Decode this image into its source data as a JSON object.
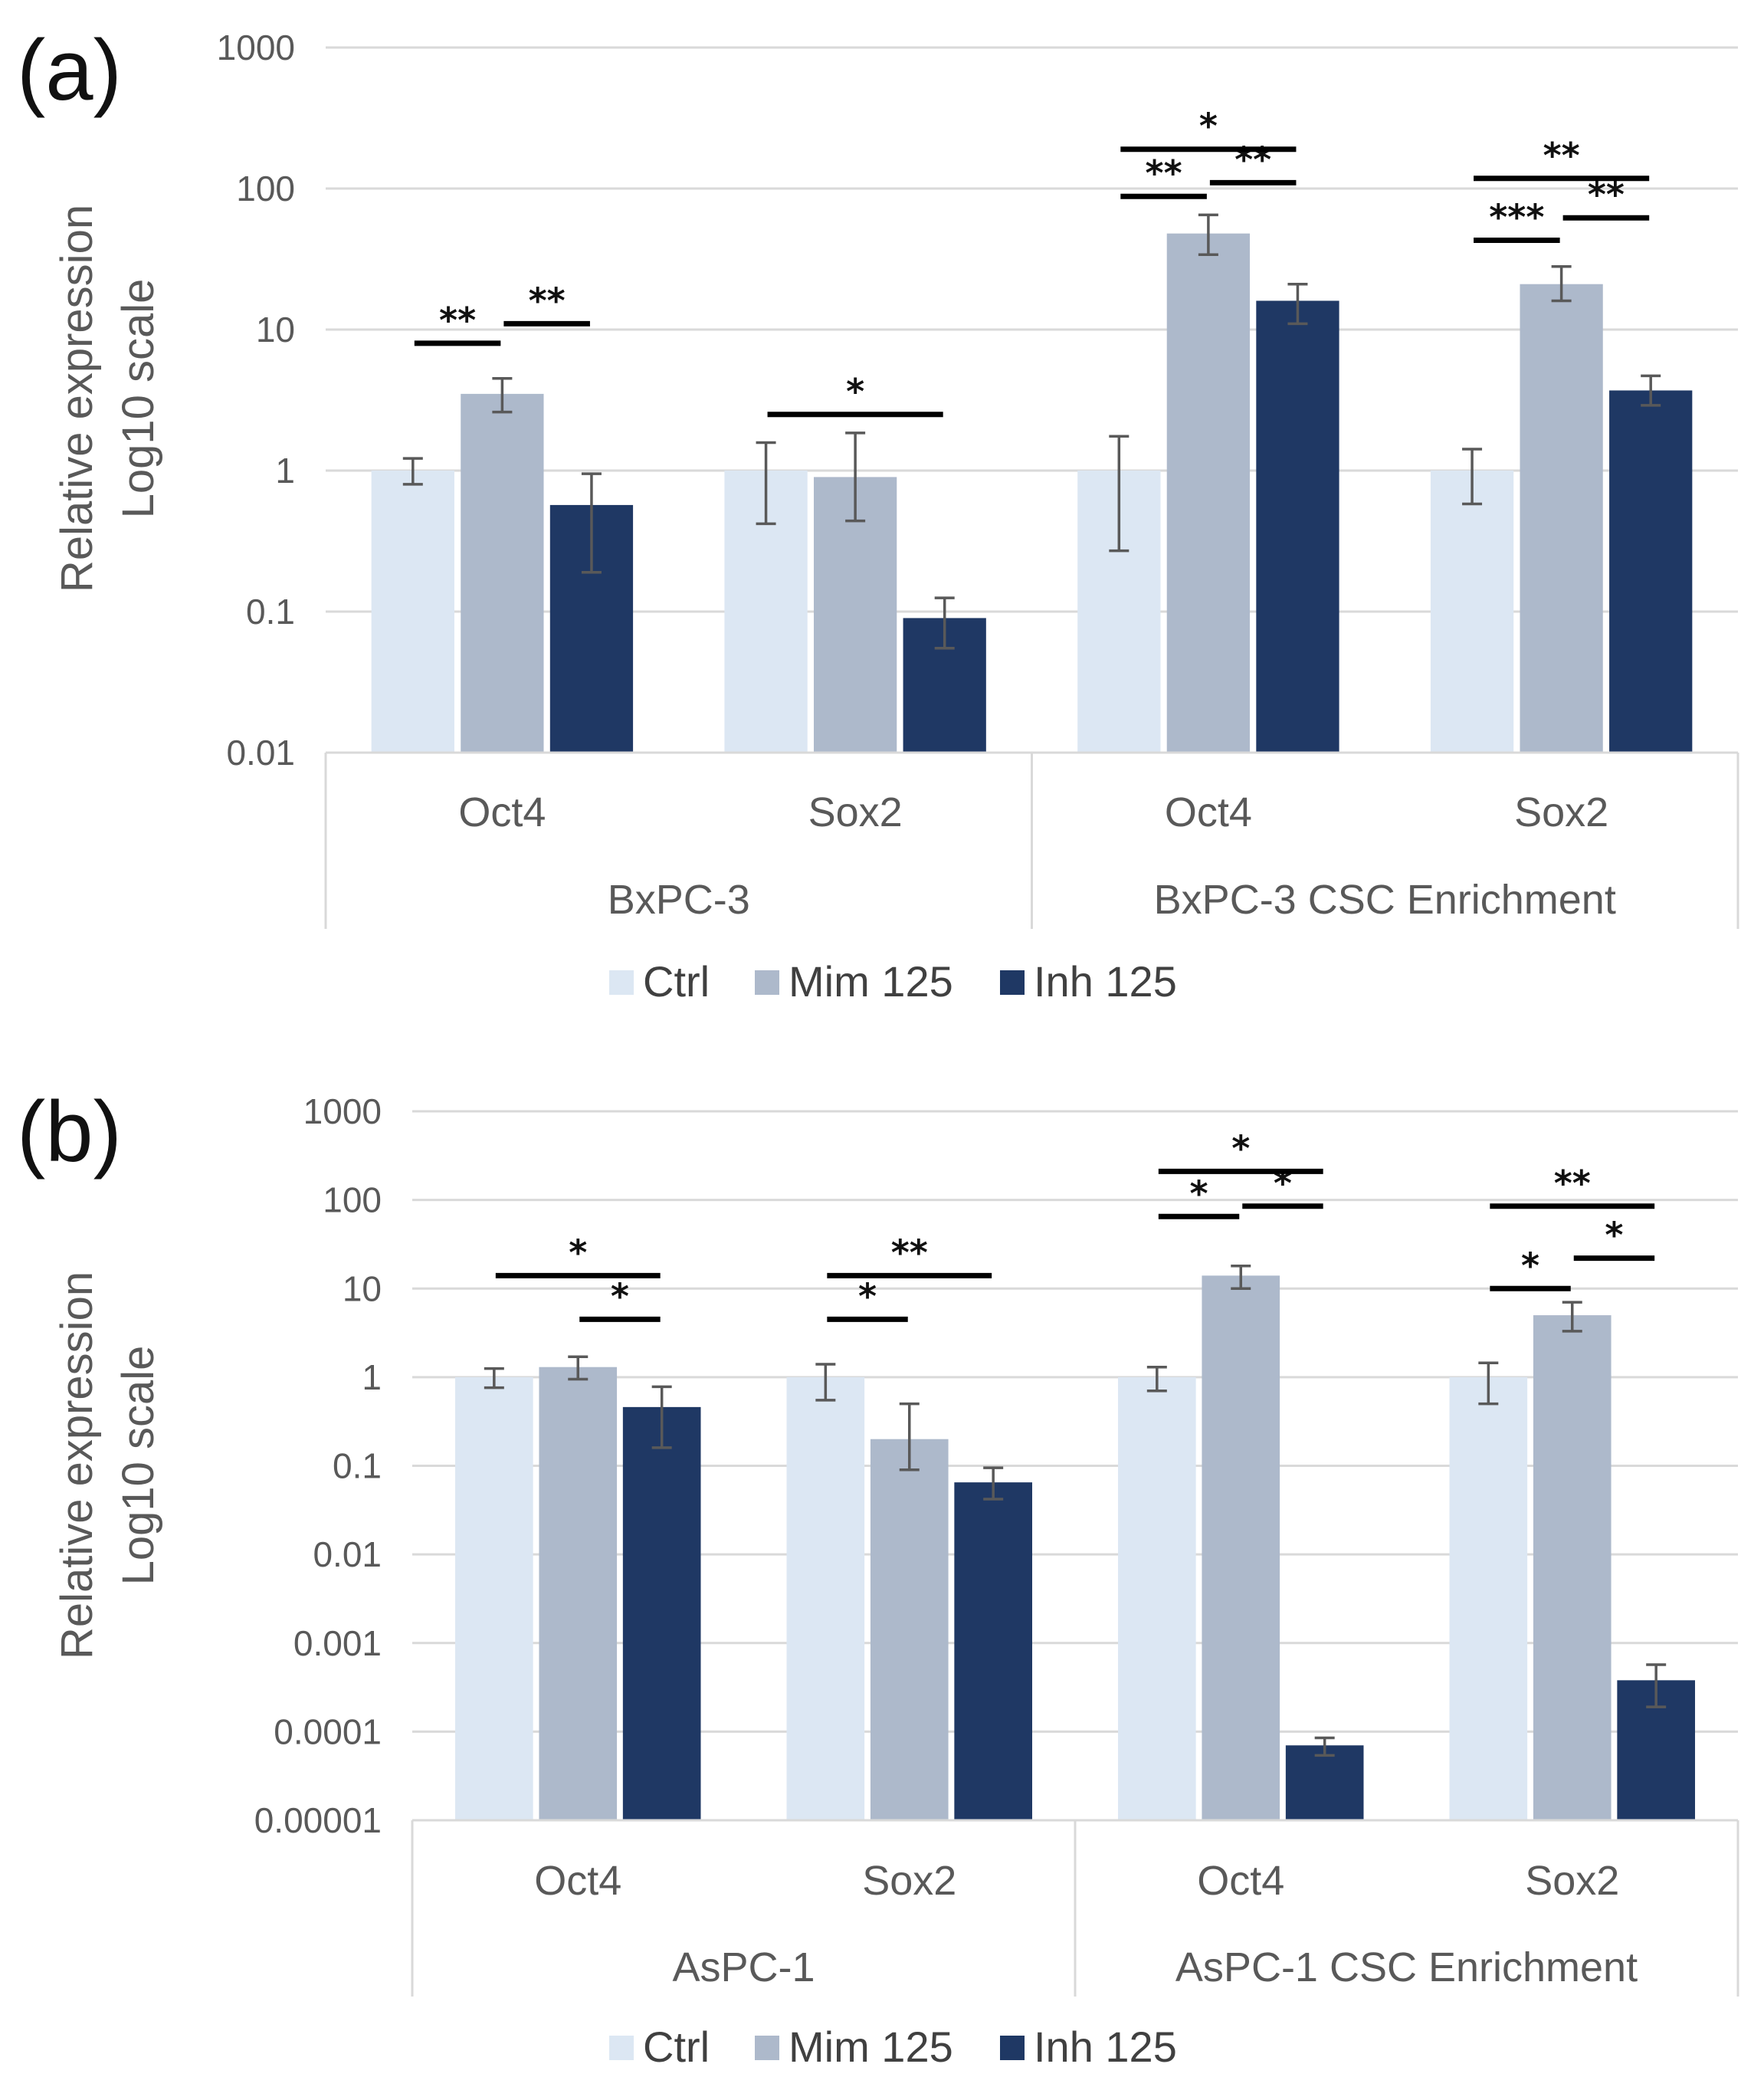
{
  "colors": {
    "Ctrl": "#dce7f3",
    "Mim 125": "#adb9cb",
    "Inh 125": "#1f3864"
  },
  "chart_data": [
    {
      "panel_label": "(a)",
      "type": "bar",
      "yscale": "log10",
      "ylim": [
        0.01,
        1000
      ],
      "yticks": [
        "0.01",
        "0.1",
        "1",
        "10",
        "100",
        "1000"
      ],
      "ylabel": [
        "Relative expression",
        "Log10 scale"
      ],
      "categories": [
        "Oct4",
        "Sox2",
        "Oct4",
        "Sox2"
      ],
      "groups": [
        {
          "label": "BxPC-3",
          "categories": [
            0,
            1
          ]
        },
        {
          "label": "BxPC-3 CSC Enrichment",
          "categories": [
            2,
            3
          ]
        }
      ],
      "series": [
        {
          "name": "Ctrl",
          "values": [
            1,
            1,
            1,
            1
          ],
          "err_low": [
            0.8,
            0.42,
            0.27,
            0.58
          ],
          "err_high": [
            1.22,
            1.58,
            1.75,
            1.42
          ]
        },
        {
          "name": "Mim 125",
          "values": [
            3.5,
            0.9,
            48,
            21
          ],
          "err_low": [
            2.6,
            0.44,
            34,
            16
          ],
          "err_high": [
            4.5,
            1.85,
            65,
            28
          ]
        },
        {
          "name": "Inh 125",
          "values": [
            0.57,
            0.09,
            16,
            3.7
          ],
          "err_low": [
            0.19,
            0.055,
            11,
            2.9
          ],
          "err_high": [
            0.95,
            0.125,
            21,
            4.7
          ]
        }
      ],
      "significance": [
        {
          "category": 0,
          "from": "Ctrl",
          "to": "Mim 125",
          "label": "**",
          "y": 8.0
        },
        {
          "category": 0,
          "from": "Mim 125",
          "to": "Inh 125",
          "label": "**",
          "y": 11.0
        },
        {
          "category": 1,
          "from": "Ctrl",
          "to": "Inh 125",
          "label": "*",
          "y": 2.5
        },
        {
          "category": 2,
          "from": "Ctrl",
          "to": "Mim 125",
          "label": "**",
          "y": 88
        },
        {
          "category": 2,
          "from": "Mim 125",
          "to": "Inh 125",
          "label": "**",
          "y": 110
        },
        {
          "category": 2,
          "from": "Ctrl",
          "to": "Inh 125",
          "label": "*",
          "y": 190
        },
        {
          "category": 3,
          "from": "Ctrl",
          "to": "Mim 125",
          "label": "***",
          "y": 43
        },
        {
          "category": 3,
          "from": "Mim 125",
          "to": "Inh 125",
          "label": "**",
          "y": 62
        },
        {
          "category": 3,
          "from": "Ctrl",
          "to": "Inh 125",
          "label": "**",
          "y": 118
        }
      ],
      "legend": [
        "Ctrl",
        "Mim 125",
        "Inh 125"
      ]
    },
    {
      "panel_label": "(b)",
      "type": "bar",
      "yscale": "log10",
      "ylim": [
        1e-05,
        1000
      ],
      "yticks": [
        "0.00001",
        "0.0001",
        "0.001",
        "0.01",
        "0.1",
        "1",
        "10",
        "100",
        "1000"
      ],
      "ylabel": [
        "Relative expression",
        "Log10 scale"
      ],
      "categories": [
        "Oct4",
        "Sox2",
        "Oct4",
        "Sox2"
      ],
      "groups": [
        {
          "label": "AsPC-1",
          "categories": [
            0,
            1
          ]
        },
        {
          "label": "AsPC-1 CSC Enrichment",
          "categories": [
            2,
            3
          ]
        }
      ],
      "series": [
        {
          "name": "Ctrl",
          "values": [
            1,
            1,
            1,
            1
          ],
          "err_low": [
            0.76,
            0.55,
            0.7,
            0.5
          ],
          "err_high": [
            1.25,
            1.4,
            1.3,
            1.45
          ]
        },
        {
          "name": "Mim 125",
          "values": [
            1.3,
            0.2,
            14,
            5
          ],
          "err_low": [
            0.95,
            0.09,
            10,
            3.3
          ],
          "err_high": [
            1.7,
            0.5,
            18,
            7
          ]
        },
        {
          "name": "Inh 125",
          "values": [
            0.46,
            0.065,
            7e-05,
            0.00038
          ],
          "err_low": [
            0.16,
            0.042,
            5.4e-05,
            0.00019
          ],
          "err_high": [
            0.78,
            0.095,
            8.5e-05,
            0.00057
          ]
        }
      ],
      "significance": [
        {
          "category": 0,
          "from": "Mim 125",
          "to": "Inh 125",
          "label": "*",
          "y": 4.5
        },
        {
          "category": 0,
          "from": "Ctrl",
          "to": "Inh 125",
          "label": "*",
          "y": 14
        },
        {
          "category": 1,
          "from": "Ctrl",
          "to": "Mim 125",
          "label": "*",
          "y": 4.5
        },
        {
          "category": 1,
          "from": "Ctrl",
          "to": "Inh 125",
          "label": "**",
          "y": 14
        },
        {
          "category": 2,
          "from": "Ctrl",
          "to": "Mim 125",
          "label": "*",
          "y": 65
        },
        {
          "category": 2,
          "from": "Mim 125",
          "to": "Inh 125",
          "label": "*",
          "y": 85
        },
        {
          "category": 2,
          "from": "Ctrl",
          "to": "Inh 125",
          "label": "*",
          "y": 210
        },
        {
          "category": 3,
          "from": "Ctrl",
          "to": "Mim 125",
          "label": "*",
          "y": 10
        },
        {
          "category": 3,
          "from": "Mim 125",
          "to": "Inh 125",
          "label": "*",
          "y": 22
        },
        {
          "category": 3,
          "from": "Ctrl",
          "to": "Inh 125",
          "label": "**",
          "y": 85
        }
      ],
      "legend": [
        "Ctrl",
        "Mim 125",
        "Inh 125"
      ]
    }
  ]
}
